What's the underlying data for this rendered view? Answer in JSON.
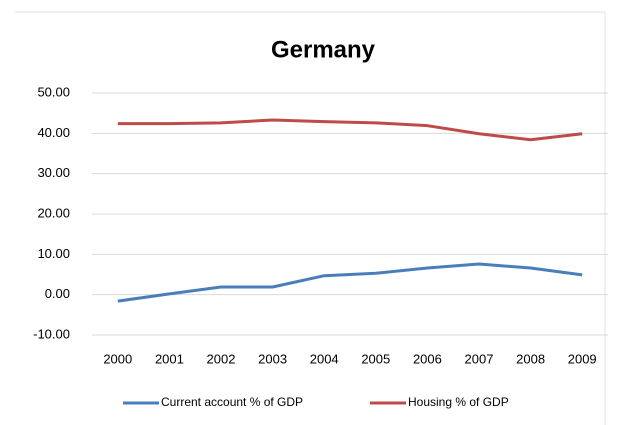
{
  "chart_data": {
    "type": "line",
    "title": "Germany",
    "categories": [
      "2000",
      "2001",
      "2002",
      "2003",
      "2004",
      "2005",
      "2006",
      "2007",
      "2008",
      "2009"
    ],
    "series": [
      {
        "name": "Current account % of GDP",
        "color": "#4a7ebb",
        "values": [
          -1.6,
          0.2,
          1.9,
          1.9,
          4.7,
          5.3,
          6.6,
          7.6,
          6.6,
          4.9
        ]
      },
      {
        "name": "Housing % of GDP",
        "color": "#be4b48",
        "values": [
          42.4,
          42.4,
          42.6,
          43.3,
          42.9,
          42.6,
          41.9,
          39.9,
          38.4,
          39.9
        ]
      }
    ],
    "ylim": [
      -10,
      50
    ],
    "yticks": [
      {
        "value": -10,
        "label": "-10.00"
      },
      {
        "value": 0,
        "label": "0.00"
      },
      {
        "value": 10,
        "label": "10.00"
      },
      {
        "value": 20,
        "label": "20.00"
      },
      {
        "value": 30,
        "label": "30.00"
      },
      {
        "value": 40,
        "label": "40.00"
      },
      {
        "value": 50,
        "label": "50.00"
      }
    ],
    "grid": true,
    "legend": "bottom"
  }
}
